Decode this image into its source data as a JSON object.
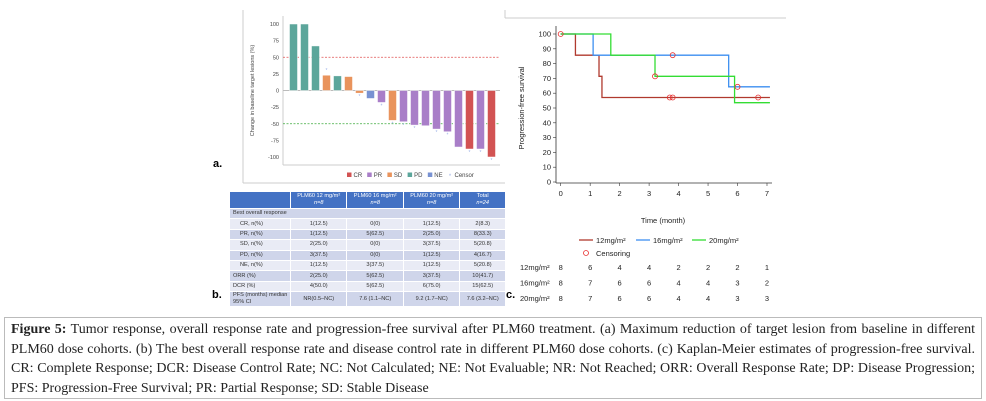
{
  "panel_labels": {
    "a": "a.",
    "b": "b.",
    "c": "c."
  },
  "chart_data": [
    {
      "type": "bar",
      "panel": "a",
      "ylabel": "Change in baseline target lesions (%)",
      "ylim": [
        -100,
        100
      ],
      "yticks": [
        "100",
        "75",
        "50",
        "25",
        "0",
        "-25",
        "-50",
        "-75",
        "-100"
      ],
      "reference_lines": [
        {
          "value": 50,
          "color": "#e05050"
        },
        {
          "value": -50,
          "color": "#3caa3c"
        }
      ],
      "legend": [
        "CR",
        "PR",
        "SD",
        "PD",
        "NE",
        "Censor"
      ],
      "legend_placement": "bottom",
      "colors": {
        "CR": "#d25353",
        "PR": "#a97ec8",
        "SD": "#e9935c",
        "PD": "#5ca69b",
        "NE": "#7892d2",
        "Censor": "#9fb3e8"
      },
      "bars": [
        {
          "response": "PD",
          "value": 100,
          "censor": false
        },
        {
          "response": "PD",
          "value": 100,
          "censor": false
        },
        {
          "response": "PD",
          "value": 67,
          "censor": false
        },
        {
          "response": "SD",
          "value": 23,
          "censor": true
        },
        {
          "response": "PD",
          "value": 22,
          "censor": false
        },
        {
          "response": "SD",
          "value": 21,
          "censor": false
        },
        {
          "response": "SD",
          "value": -4,
          "censor": true
        },
        {
          "response": "NE",
          "value": -12,
          "censor": false
        },
        {
          "response": "PR",
          "value": -18,
          "censor": true
        },
        {
          "response": "SD",
          "value": -45,
          "censor": true
        },
        {
          "response": "PR",
          "value": -47,
          "censor": true
        },
        {
          "response": "PR",
          "value": -52,
          "censor": true
        },
        {
          "response": "PR",
          "value": -53,
          "censor": false
        },
        {
          "response": "PR",
          "value": -58,
          "censor": true
        },
        {
          "response": "PR",
          "value": -62,
          "censor": true
        },
        {
          "response": "PR",
          "value": -85,
          "censor": false
        },
        {
          "response": "CR",
          "value": -88,
          "censor": true
        },
        {
          "response": "PR",
          "value": -88,
          "censor": true
        },
        {
          "response": "CR",
          "value": -100,
          "censor": true
        }
      ]
    },
    {
      "type": "table",
      "panel": "b",
      "headers": [
        {
          "line1": "",
          "line2": ""
        },
        {
          "line1": "PLM60 12 mg/m²",
          "line2": "n=8"
        },
        {
          "line1": "PLM60 16 mg/m²",
          "line2": "n=8"
        },
        {
          "line1": "PLM60 20 mg/m²",
          "line2": "n=8"
        },
        {
          "line1": "Total",
          "line2": "n=24"
        }
      ],
      "section": "Best overall response",
      "rows": [
        {
          "label": "CR, n(%)",
          "indent": true,
          "cells": [
            "1(12.5)",
            "0(0)",
            "1(12.5)",
            "2(8.3)"
          ]
        },
        {
          "label": "PR, n(%)",
          "indent": true,
          "cells": [
            "1(12.5)",
            "5(62.5)",
            "2(25.0)",
            "8(33.3)"
          ]
        },
        {
          "label": "SD, n(%)",
          "indent": true,
          "cells": [
            "2(25.0)",
            "0(0)",
            "3(37.5)",
            "5(20.8)"
          ]
        },
        {
          "label": "PD, n(%)",
          "indent": true,
          "cells": [
            "3(37.5)",
            "0(0)",
            "1(12.5)",
            "4(16.7)"
          ]
        },
        {
          "label": "NE, n(%)",
          "indent": true,
          "cells": [
            "1(12.5)",
            "3(37.5)",
            "1(12.5)",
            "5(20.8)"
          ]
        },
        {
          "label": "ORR (%)",
          "indent": false,
          "cells": [
            "2(25.0)",
            "5(62.5)",
            "3(37.5)",
            "10(41.7)"
          ]
        },
        {
          "label": "DCR (%)",
          "indent": false,
          "cells": [
            "4(50.0)",
            "5(62.5)",
            "6(75.0)",
            "15(62.5)"
          ]
        },
        {
          "label": "PFS (months) median 95% CI",
          "indent": false,
          "cells": [
            "NR(0.5–NC)",
            "7.6 (1.1–NC)",
            "9.2 (1.7–NC)",
            "7.6 (3.2–NC)"
          ]
        }
      ]
    },
    {
      "type": "line",
      "panel": "c",
      "xlabel": "Time (month)",
      "ylabel": "Progression-free survival",
      "xlim": [
        0,
        7
      ],
      "ylim": [
        0,
        100
      ],
      "xticks": [
        "0",
        "1",
        "2",
        "3",
        "4",
        "5",
        "6",
        "7"
      ],
      "yticks": [
        "0",
        "10",
        "20",
        "30",
        "40",
        "50",
        "60",
        "70",
        "80",
        "90",
        "100"
      ],
      "legend_placement": "bottom",
      "censor_label": "Censoring",
      "censor_color": "#e83030",
      "series": [
        {
          "name": "12mg/m²",
          "color": "#b03a2e",
          "steps": [
            [
              0,
              100
            ],
            [
              0.5,
              85.7
            ],
            [
              1.3,
              71.4
            ],
            [
              1.4,
              57.1
            ]
          ],
          "end": 7.1,
          "censors": [
            [
              0,
              100
            ],
            [
              3.7,
              57.1
            ],
            [
              3.8,
              57.1
            ],
            [
              6.7,
              57.1
            ]
          ],
          "at_risk": [
            8,
            6,
            4,
            4,
            2,
            2,
            2,
            1
          ]
        },
        {
          "name": "16mg/m²",
          "color": "#3d8ff0",
          "steps": [
            [
              0,
              100
            ],
            [
              1.1,
              85.7
            ],
            [
              5.7,
              64.3
            ]
          ],
          "end": 7.1,
          "censors": [
            [
              3.8,
              85.7
            ],
            [
              6.0,
              64.3
            ]
          ],
          "at_risk": [
            8,
            7,
            6,
            6,
            4,
            4,
            3,
            2
          ]
        },
        {
          "name": "20mg/m²",
          "color": "#33dd33",
          "steps": [
            [
              0,
              100
            ],
            [
              1.7,
              85.7
            ],
            [
              3.2,
              71.4
            ],
            [
              5.9,
              53.6
            ]
          ],
          "end": 7.1,
          "censors": [
            [
              3.2,
              71.4
            ]
          ],
          "at_risk": [
            8,
            7,
            6,
            6,
            4,
            4,
            3,
            3
          ]
        }
      ]
    }
  ],
  "caption": {
    "label": "Figure 5:",
    "text": "Tumor response, overall response rate and progression-free survival after PLM60 treatment. (a) Maximum reduction of target lesion from baseline in different PLM60 dose cohorts. (b) The best overall response rate and disease control rate in different PLM60 dose cohorts. (c) Kaplan-Meier estimates of progression-free survival. CR: Complete Response; DCR: Disease Control Rate; NC: Not Calculated; NE: Not Evaluable; NR: Not Reached; ORR: Overall Response Rate; DP: Disease Progression; PFS: Progression-Free Survival; PR: Partial Response; SD: Stable Disease"
  }
}
